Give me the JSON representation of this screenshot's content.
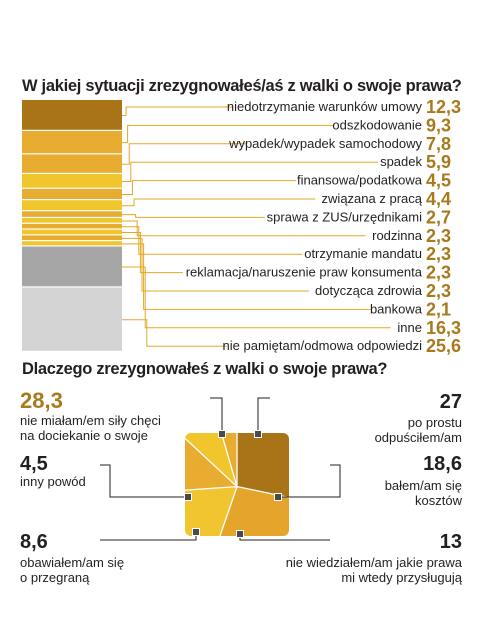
{
  "chart_data": [
    {
      "type": "bar",
      "title": "W jakiej sytuacji zrezygnowałeś/aś z walki o swoje prawa?",
      "categories": [
        "niedotrzymanie warunków umowy",
        "odszkodowanie",
        "wypadek/wypadek samochodowy",
        "spadek",
        "finansowa/podatkowa",
        "związana z pracą",
        "sprawa z ZUS/urzędnikami",
        "rodzinna",
        "otrzymanie mandatu",
        "reklamacja/naruszenie praw konsumenta",
        "dotycząca zdrowia",
        "bankowa",
        "inne",
        "nie pamiętam/odmowa odpowiedzi"
      ],
      "values": [
        12.3,
        9.3,
        7.8,
        5.9,
        4.5,
        4.4,
        2.7,
        2.3,
        2.3,
        2.3,
        2.3,
        2.1,
        16.3,
        25.6
      ],
      "value_labels": [
        "12,3",
        "9,3",
        "7,8",
        "5,9",
        "4,5",
        "4,4",
        "2,7",
        "2,3",
        "2,3",
        "2,3",
        "2,3",
        "2,1",
        "16,3",
        "25,6"
      ],
      "colors": [
        "#a97318",
        "#e8ad30",
        "#e8ad30",
        "#f1c52c",
        "#e8ad30",
        "#f1c52c",
        "#e8ad30",
        "#f1c52c",
        "#e8ad30",
        "#f1c52c",
        "#e8ad30",
        "#f1c52c",
        "#a6a6a6",
        "#d4d4d4"
      ]
    },
    {
      "type": "pie",
      "title": "Dlaczego zrezygnowałeś z walki o swoje prawa?",
      "categories": [
        "nie miałam/em siły chęci na dociekanie o swoje",
        "po prostu odpuściłem/am",
        "bałem/am się kosztów",
        "nie wiedziałem/am jakie prawa mi wtedy przysługują",
        "obawiałem/am się o przegraną",
        "inny powód"
      ],
      "values": [
        28.3,
        27,
        18.6,
        13,
        8.6,
        4.5
      ],
      "value_labels": [
        "28,3",
        "27",
        "18,6",
        "13",
        "8,6",
        "4,5"
      ],
      "colors": [
        "#a97318",
        "#e5a52c",
        "#f0c52f",
        "#e8ad30",
        "#f1c52c",
        "#e8ad30"
      ]
    }
  ],
  "callouts2": [
    {
      "lines": [
        "nie miałam/em siły chęci",
        "na dociekanie o swoje"
      ]
    },
    {
      "lines": [
        "po prostu",
        "odpuściłem/am"
      ]
    },
    {
      "lines": [
        "bałem/am się",
        "kosztów"
      ]
    },
    {
      "lines": [
        "nie wiedziałem/am jakie prawa",
        "mi wtedy przysługują"
      ]
    },
    {
      "lines": [
        "obawiałem/am się",
        "o przegraną"
      ]
    },
    {
      "lines": [
        "inny powód"
      ]
    }
  ]
}
